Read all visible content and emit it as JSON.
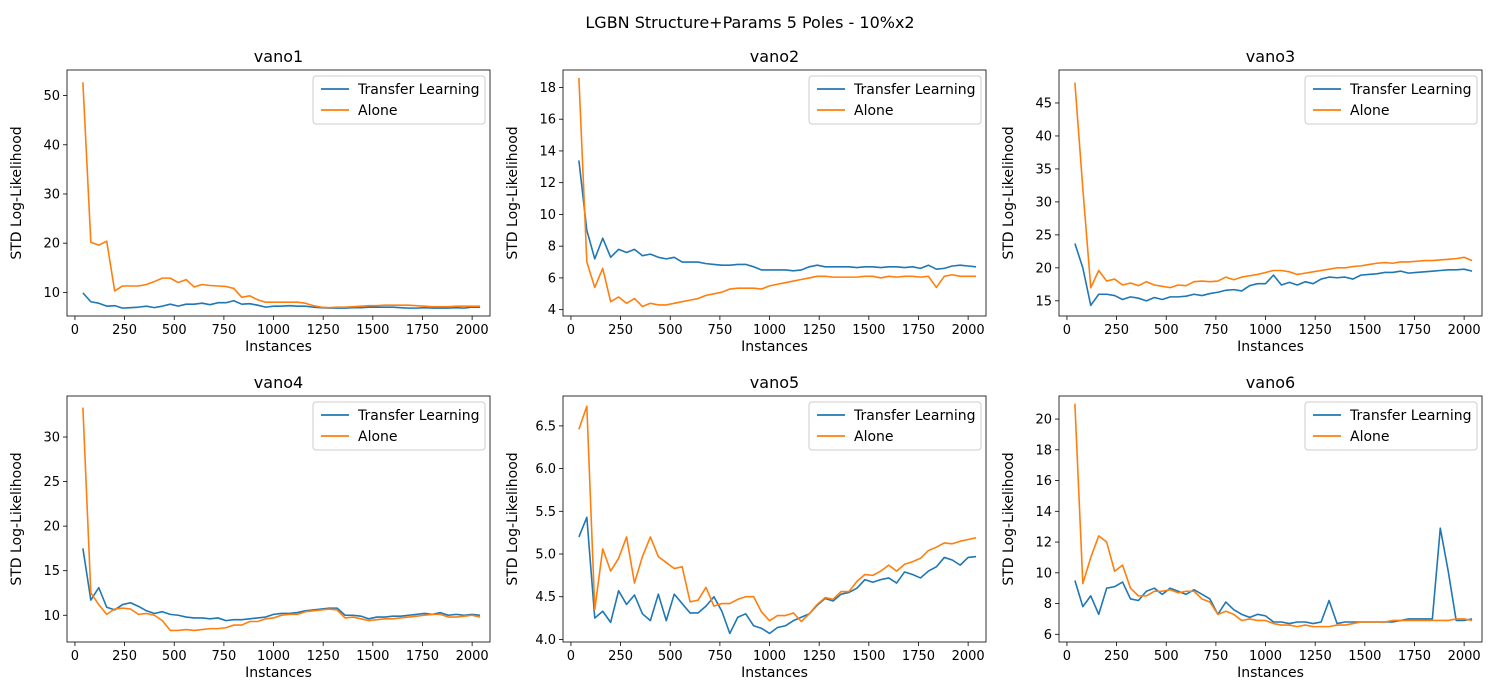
{
  "figure_title": "LGBN Structure+Params 5 Poles - 10%x2",
  "colors": {
    "transfer": "#1f77b4",
    "alone": "#ff7f0e"
  },
  "chart_data": [
    {
      "type": "line",
      "title": "vano1",
      "xlabel": "Instances",
      "ylabel": "STD Log-Likelihood",
      "xlim": [
        -40,
        2090
      ],
      "ylim": [
        5.2,
        55.2
      ],
      "xticks": [
        0,
        250,
        500,
        750,
        1000,
        1250,
        1500,
        1750,
        2000
      ],
      "yticks": [
        10,
        20,
        30,
        40,
        50
      ],
      "legend": "top-right",
      "x": [
        40,
        80,
        120,
        160,
        200,
        240,
        280,
        320,
        360,
        400,
        440,
        480,
        520,
        560,
        600,
        640,
        680,
        720,
        760,
        800,
        840,
        880,
        920,
        960,
        1000,
        1040,
        1080,
        1120,
        1160,
        1200,
        1240,
        1280,
        1320,
        1360,
        1400,
        1440,
        1480,
        1520,
        1560,
        1600,
        1640,
        1680,
        1720,
        1760,
        1800,
        1840,
        1880,
        1920,
        1960,
        2000,
        2040
      ],
      "series": [
        {
          "name": "Transfer Learning",
          "values": [
            9.9,
            8.1,
            7.8,
            7.2,
            7.3,
            6.8,
            6.9,
            7.0,
            7.2,
            6.9,
            7.2,
            7.6,
            7.2,
            7.6,
            7.6,
            7.8,
            7.5,
            7.9,
            7.9,
            8.3,
            7.6,
            7.7,
            7.4,
            7.0,
            7.2,
            7.2,
            7.3,
            7.2,
            7.2,
            7.0,
            6.9,
            6.8,
            6.8,
            6.8,
            6.9,
            6.9,
            7.0,
            7.0,
            7.0,
            7.0,
            6.9,
            6.8,
            6.8,
            6.9,
            6.8,
            6.8,
            6.8,
            6.9,
            6.8,
            7.0,
            7.0
          ]
        },
        {
          "name": "Alone",
          "values": [
            52.7,
            20.2,
            19.6,
            20.4,
            10.3,
            11.3,
            11.3,
            11.3,
            11.6,
            12.2,
            12.9,
            12.9,
            12.0,
            12.6,
            11.1,
            11.6,
            11.4,
            11.3,
            11.2,
            10.8,
            9.0,
            9.3,
            8.5,
            8.0,
            8.0,
            8.0,
            8.0,
            8.0,
            7.8,
            7.3,
            7.0,
            6.9,
            7.0,
            7.0,
            7.1,
            7.2,
            7.3,
            7.3,
            7.4,
            7.4,
            7.4,
            7.4,
            7.3,
            7.2,
            7.1,
            7.1,
            7.1,
            7.2,
            7.2,
            7.2,
            7.2
          ]
        }
      ]
    },
    {
      "type": "line",
      "title": "vano2",
      "xlabel": "Instances",
      "ylabel": "STD Log-Likelihood",
      "xlim": [
        -40,
        2090
      ],
      "ylim": [
        3.6,
        19.1
      ],
      "xticks": [
        0,
        250,
        500,
        750,
        1000,
        1250,
        1500,
        1750,
        2000
      ],
      "yticks": [
        4,
        6,
        8,
        10,
        12,
        14,
        16,
        18
      ],
      "legend": "top-right",
      "x": [
        40,
        80,
        120,
        160,
        200,
        240,
        280,
        320,
        360,
        400,
        440,
        480,
        520,
        560,
        600,
        640,
        680,
        720,
        760,
        800,
        840,
        880,
        920,
        960,
        1000,
        1040,
        1080,
        1120,
        1160,
        1200,
        1240,
        1280,
        1320,
        1360,
        1400,
        1440,
        1480,
        1520,
        1560,
        1600,
        1640,
        1680,
        1720,
        1760,
        1800,
        1840,
        1880,
        1920,
        1960,
        2000,
        2040
      ],
      "series": [
        {
          "name": "Transfer Learning",
          "values": [
            13.4,
            9.0,
            7.2,
            8.5,
            7.3,
            7.8,
            7.6,
            7.8,
            7.4,
            7.5,
            7.3,
            7.2,
            7.3,
            7.0,
            7.0,
            7.0,
            6.9,
            6.85,
            6.8,
            6.8,
            6.85,
            6.85,
            6.7,
            6.5,
            6.5,
            6.5,
            6.5,
            6.45,
            6.5,
            6.7,
            6.8,
            6.7,
            6.7,
            6.7,
            6.7,
            6.65,
            6.7,
            6.7,
            6.65,
            6.7,
            6.7,
            6.65,
            6.7,
            6.6,
            6.8,
            6.55,
            6.6,
            6.75,
            6.8,
            6.75,
            6.7
          ]
        },
        {
          "name": "Alone",
          "values": [
            18.6,
            7.0,
            5.4,
            6.6,
            4.5,
            4.8,
            4.4,
            4.7,
            4.2,
            4.4,
            4.3,
            4.3,
            4.4,
            4.5,
            4.6,
            4.7,
            4.9,
            5.0,
            5.1,
            5.3,
            5.35,
            5.35,
            5.35,
            5.3,
            5.5,
            5.6,
            5.7,
            5.8,
            5.9,
            6.0,
            6.1,
            6.1,
            6.05,
            6.05,
            6.05,
            6.05,
            6.1,
            6.1,
            6.0,
            6.1,
            6.05,
            6.1,
            6.1,
            6.05,
            6.1,
            5.4,
            6.1,
            6.2,
            6.1,
            6.1,
            6.1
          ]
        }
      ]
    },
    {
      "type": "line",
      "title": "vano3",
      "xlabel": "Instances",
      "ylabel": "STD Log-Likelihood",
      "xlim": [
        -40,
        2090
      ],
      "ylim": [
        12.7,
        50.0
      ],
      "xticks": [
        0,
        250,
        500,
        750,
        1000,
        1250,
        1500,
        1750,
        2000
      ],
      "yticks": [
        15,
        20,
        25,
        30,
        35,
        40,
        45
      ],
      "legend": "top-right",
      "x": [
        40,
        80,
        120,
        160,
        200,
        240,
        280,
        320,
        360,
        400,
        440,
        480,
        520,
        560,
        600,
        640,
        680,
        720,
        760,
        800,
        840,
        880,
        920,
        960,
        1000,
        1040,
        1080,
        1120,
        1160,
        1200,
        1240,
        1280,
        1320,
        1360,
        1400,
        1440,
        1480,
        1520,
        1560,
        1600,
        1640,
        1680,
        1720,
        1760,
        1800,
        1840,
        1880,
        1920,
        1960,
        2000,
        2040
      ],
      "series": [
        {
          "name": "Transfer Learning",
          "values": [
            23.7,
            20.0,
            14.3,
            16.0,
            16.0,
            15.8,
            15.2,
            15.6,
            15.4,
            15.0,
            15.5,
            15.2,
            15.6,
            15.6,
            15.7,
            16.0,
            15.8,
            16.1,
            16.3,
            16.6,
            16.7,
            16.5,
            17.3,
            17.6,
            17.6,
            18.9,
            17.4,
            17.8,
            17.4,
            17.9,
            17.6,
            18.3,
            18.6,
            18.5,
            18.6,
            18.3,
            18.9,
            19.0,
            19.1,
            19.3,
            19.3,
            19.5,
            19.2,
            19.3,
            19.4,
            19.5,
            19.6,
            19.7,
            19.7,
            19.8,
            19.5
          ]
        },
        {
          "name": "Alone",
          "values": [
            48.1,
            32.0,
            17.0,
            19.6,
            18.0,
            18.3,
            17.4,
            17.7,
            17.3,
            17.9,
            17.4,
            17.2,
            17.0,
            17.4,
            17.3,
            17.9,
            18.0,
            17.9,
            18.0,
            18.6,
            18.2,
            18.6,
            18.8,
            19.0,
            19.3,
            19.6,
            19.6,
            19.4,
            19.0,
            19.2,
            19.4,
            19.6,
            19.8,
            20.0,
            20.0,
            20.2,
            20.3,
            20.5,
            20.7,
            20.8,
            20.7,
            20.9,
            20.9,
            21.0,
            21.1,
            21.1,
            21.2,
            21.3,
            21.4,
            21.6,
            21.1
          ]
        }
      ]
    },
    {
      "type": "line",
      "title": "vano4",
      "xlabel": "Instances",
      "ylabel": "STD Log-Likelihood",
      "xlim": [
        -40,
        2090
      ],
      "ylim": [
        7.0,
        34.6
      ],
      "xticks": [
        0,
        250,
        500,
        750,
        1000,
        1250,
        1500,
        1750,
        2000
      ],
      "yticks": [
        10,
        15,
        20,
        25,
        30
      ],
      "legend": "top-right",
      "x": [
        40,
        80,
        120,
        160,
        200,
        240,
        280,
        320,
        360,
        400,
        440,
        480,
        520,
        560,
        600,
        640,
        680,
        720,
        760,
        800,
        840,
        880,
        920,
        960,
        1000,
        1040,
        1080,
        1120,
        1160,
        1200,
        1240,
        1280,
        1320,
        1360,
        1400,
        1440,
        1480,
        1520,
        1560,
        1600,
        1640,
        1680,
        1720,
        1760,
        1800,
        1840,
        1880,
        1920,
        1960,
        2000,
        2040
      ],
      "series": [
        {
          "name": "Transfer Learning",
          "values": [
            17.5,
            11.7,
            13.1,
            10.9,
            10.6,
            11.2,
            11.4,
            11.0,
            10.5,
            10.2,
            10.4,
            10.1,
            10.0,
            9.8,
            9.7,
            9.7,
            9.6,
            9.7,
            9.4,
            9.5,
            9.5,
            9.6,
            9.7,
            9.8,
            10.1,
            10.2,
            10.2,
            10.3,
            10.5,
            10.6,
            10.7,
            10.8,
            10.8,
            10.0,
            10.0,
            9.9,
            9.6,
            9.8,
            9.8,
            9.9,
            9.9,
            10.0,
            10.1,
            10.2,
            10.1,
            10.3,
            10.0,
            10.1,
            10.0,
            10.1,
            10.0
          ]
        },
        {
          "name": "Alone",
          "values": [
            33.3,
            12.5,
            11.2,
            10.1,
            10.7,
            10.8,
            10.7,
            10.1,
            10.2,
            10.0,
            9.4,
            8.3,
            8.3,
            8.4,
            8.3,
            8.4,
            8.5,
            8.5,
            8.6,
            8.9,
            8.9,
            9.3,
            9.3,
            9.6,
            9.7,
            10.0,
            10.1,
            10.1,
            10.4,
            10.5,
            10.6,
            10.7,
            10.6,
            9.7,
            9.8,
            9.6,
            9.4,
            9.5,
            9.6,
            9.6,
            9.7,
            9.8,
            9.9,
            10.0,
            10.1,
            10.1,
            9.8,
            9.8,
            9.9,
            10.0,
            9.8
          ]
        }
      ]
    },
    {
      "type": "line",
      "title": "vano5",
      "xlabel": "Instances",
      "ylabel": "STD Log-Likelihood",
      "xlim": [
        -40,
        2090
      ],
      "ylim": [
        3.97,
        6.85
      ],
      "xticks": [
        0,
        250,
        500,
        750,
        1000,
        1250,
        1500,
        1750,
        2000
      ],
      "yticks": [
        4.0,
        4.5,
        5.0,
        5.5,
        6.0,
        6.5
      ],
      "ytick_labels": [
        "4.0",
        "4.5",
        "5.0",
        "5.5",
        "6.0",
        "6.5"
      ],
      "legend": "top-right",
      "x": [
        40,
        80,
        120,
        160,
        200,
        240,
        280,
        320,
        360,
        400,
        440,
        480,
        520,
        560,
        600,
        640,
        680,
        720,
        760,
        800,
        840,
        880,
        920,
        960,
        1000,
        1040,
        1080,
        1120,
        1160,
        1200,
        1240,
        1280,
        1320,
        1360,
        1400,
        1440,
        1480,
        1520,
        1560,
        1600,
        1640,
        1680,
        1720,
        1760,
        1800,
        1840,
        1880,
        1920,
        1960,
        2000,
        2040
      ],
      "series": [
        {
          "name": "Transfer Learning",
          "values": [
            5.2,
            5.43,
            4.25,
            4.33,
            4.2,
            4.57,
            4.41,
            4.52,
            4.3,
            4.22,
            4.53,
            4.22,
            4.53,
            4.42,
            4.31,
            4.31,
            4.39,
            4.5,
            4.33,
            4.07,
            4.26,
            4.3,
            4.16,
            4.13,
            4.07,
            4.14,
            4.16,
            4.22,
            4.26,
            4.3,
            4.4,
            4.48,
            4.45,
            4.53,
            4.55,
            4.6,
            4.7,
            4.67,
            4.7,
            4.72,
            4.66,
            4.79,
            4.76,
            4.72,
            4.8,
            4.85,
            4.96,
            4.93,
            4.87,
            4.96,
            4.97
          ]
        },
        {
          "name": "Alone",
          "values": [
            6.46,
            6.73,
            4.35,
            5.06,
            4.8,
            4.95,
            5.2,
            4.66,
            4.97,
            5.2,
            4.97,
            4.9,
            4.83,
            4.85,
            4.44,
            4.46,
            4.61,
            4.39,
            4.42,
            4.42,
            4.47,
            4.5,
            4.5,
            4.32,
            4.22,
            4.28,
            4.28,
            4.31,
            4.21,
            4.3,
            4.41,
            4.49,
            4.47,
            4.56,
            4.56,
            4.68,
            4.76,
            4.75,
            4.8,
            4.87,
            4.8,
            4.88,
            4.91,
            4.95,
            5.04,
            5.08,
            5.13,
            5.12,
            5.15,
            5.17,
            5.19
          ]
        }
      ]
    },
    {
      "type": "line",
      "title": "vano6",
      "xlabel": "Instances",
      "ylabel": "STD Log-Likelihood",
      "xlim": [
        -40,
        2090
      ],
      "ylim": [
        5.5,
        21.5
      ],
      "xticks": [
        0,
        250,
        500,
        750,
        1000,
        1250,
        1500,
        1750,
        2000
      ],
      "yticks": [
        6,
        8,
        10,
        12,
        14,
        16,
        18,
        20
      ],
      "legend": "top-right",
      "x": [
        40,
        80,
        120,
        160,
        200,
        240,
        280,
        320,
        360,
        400,
        440,
        480,
        520,
        560,
        600,
        640,
        680,
        720,
        760,
        800,
        840,
        880,
        920,
        960,
        1000,
        1040,
        1080,
        1120,
        1160,
        1200,
        1240,
        1280,
        1320,
        1360,
        1400,
        1440,
        1480,
        1520,
        1560,
        1600,
        1640,
        1680,
        1720,
        1760,
        1800,
        1840,
        1880,
        1920,
        1960,
        2000,
        2040
      ],
      "series": [
        {
          "name": "Transfer Learning",
          "values": [
            9.5,
            7.8,
            8.5,
            7.3,
            9.0,
            9.1,
            9.4,
            8.3,
            8.2,
            8.8,
            9.0,
            8.6,
            9.0,
            8.8,
            8.6,
            8.9,
            8.6,
            8.3,
            7.3,
            8.1,
            7.6,
            7.3,
            7.1,
            7.3,
            7.2,
            6.8,
            6.8,
            6.7,
            6.8,
            6.8,
            6.7,
            6.8,
            8.2,
            6.7,
            6.8,
            6.8,
            6.8,
            6.8,
            6.8,
            6.8,
            6.8,
            6.9,
            7.0,
            7.0,
            7.0,
            7.0,
            12.9,
            10.1,
            6.9,
            6.9,
            7.0
          ]
        },
        {
          "name": "Alone",
          "values": [
            21.0,
            9.3,
            11.0,
            12.4,
            12.0,
            10.1,
            10.5,
            9.0,
            8.5,
            8.5,
            8.8,
            8.8,
            8.9,
            8.7,
            8.8,
            8.8,
            8.3,
            8.1,
            7.3,
            7.5,
            7.3,
            6.9,
            7.0,
            6.9,
            6.9,
            6.7,
            6.6,
            6.6,
            6.5,
            6.6,
            6.5,
            6.5,
            6.5,
            6.6,
            6.6,
            6.7,
            6.8,
            6.8,
            6.8,
            6.8,
            6.9,
            6.9,
            6.9,
            6.9,
            6.9,
            6.9,
            6.9,
            6.9,
            7.0,
            7.0,
            6.9
          ]
        }
      ]
    }
  ]
}
